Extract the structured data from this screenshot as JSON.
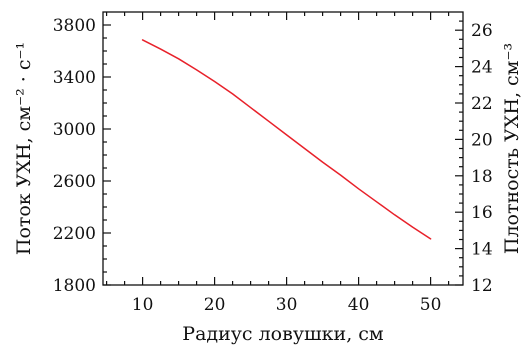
{
  "chart_data": {
    "type": "line",
    "xlabel": "Радиус ловушки, см",
    "ylabel": "Поток УХН, см⁻² · с⁻¹",
    "y2label": "Плотность УХН, см⁻³",
    "xlim": [
      4.5,
      54.5
    ],
    "ylim": [
      1800,
      3900
    ],
    "y2lim": [
      12,
      27
    ],
    "xticks": [
      10,
      20,
      30,
      40,
      50
    ],
    "yticks": [
      1800,
      2200,
      2600,
      3000,
      3400,
      3800
    ],
    "y2ticks": [
      12,
      14,
      16,
      18,
      20,
      22,
      24,
      26
    ],
    "grid": false,
    "line_color": "#e8212a",
    "series": [
      {
        "x": [
          10,
          12.5,
          15,
          17.5,
          20,
          22.5,
          25,
          27.5,
          30,
          32.5,
          35,
          37.5,
          40,
          42.5,
          45,
          47.5,
          50
        ],
        "y": [
          3685,
          3615,
          3540,
          3455,
          3365,
          3270,
          3165,
          3060,
          2955,
          2850,
          2745,
          2645,
          2540,
          2440,
          2340,
          2245,
          2155
        ]
      }
    ]
  }
}
